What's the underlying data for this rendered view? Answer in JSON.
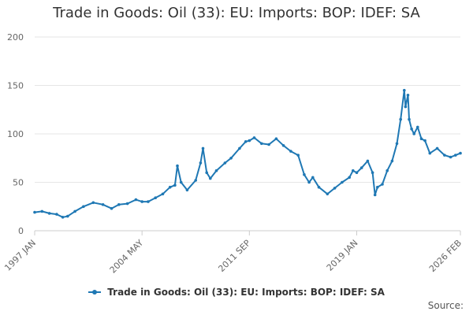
{
  "chart_data": {
    "type": "line",
    "title": "Trade in Goods: Oil (33): EU: Imports: BOP: IDEF: SA",
    "xlabel": "",
    "ylabel": "",
    "ylim": [
      0,
      200
    ],
    "y_ticks": [
      0,
      50,
      100,
      150,
      200
    ],
    "x_tick_labels": [
      "1997 JAN",
      "2004 MAY",
      "2011 SEP",
      "2019 JAN",
      "2026 FEB"
    ],
    "x_tick_dates": [
      "1997-01",
      "2004-05",
      "2011-09",
      "2019-01",
      "2026-02"
    ],
    "grid": true,
    "legend_position": "bottom",
    "series": [
      {
        "name": "Trade in Goods: Oil (33): EU: Imports: BOP: IDEF: SA",
        "color": "#1f78b4",
        "x": [
          "1997-01",
          "1997-07",
          "1998-01",
          "1998-07",
          "1998-12",
          "1999-04",
          "1999-10",
          "2000-05",
          "2001-01",
          "2001-09",
          "2002-04",
          "2002-10",
          "2003-05",
          "2003-12",
          "2004-05",
          "2004-10",
          "2005-04",
          "2005-10",
          "2006-04",
          "2006-08",
          "2006-10",
          "2007-01",
          "2007-06",
          "2008-01",
          "2008-05",
          "2008-07",
          "2008-10",
          "2009-01",
          "2009-06",
          "2010-01",
          "2010-06",
          "2011-01",
          "2011-06",
          "2011-09",
          "2012-01",
          "2012-07",
          "2013-01",
          "2013-07",
          "2014-01",
          "2014-07",
          "2015-01",
          "2015-06",
          "2015-10",
          "2016-01",
          "2016-06",
          "2017-01",
          "2017-07",
          "2018-01",
          "2018-07",
          "2018-10",
          "2019-01",
          "2019-05",
          "2019-10",
          "2020-02",
          "2020-04",
          "2020-06",
          "2020-10",
          "2021-02",
          "2021-06",
          "2021-10",
          "2022-01",
          "2022-04",
          "2022-05",
          "2022-07",
          "2022-08",
          "2022-10",
          "2022-12",
          "2023-03",
          "2023-06",
          "2023-09",
          "2024-01",
          "2024-07",
          "2025-01",
          "2025-06",
          "2025-10",
          "2026-02"
        ],
        "values": [
          19,
          20,
          18,
          17,
          14,
          15,
          20,
          25,
          29,
          27,
          23,
          27,
          28,
          32,
          30,
          30,
          34,
          38,
          45,
          47,
          67,
          50,
          42,
          52,
          70,
          85,
          60,
          54,
          62,
          70,
          75,
          85,
          92,
          93,
          96,
          90,
          89,
          95,
          88,
          82,
          78,
          58,
          50,
          55,
          45,
          38,
          44,
          50,
          55,
          62,
          60,
          65,
          72,
          60,
          37,
          45,
          48,
          62,
          72,
          90,
          115,
          145,
          128,
          140,
          115,
          105,
          100,
          107,
          95,
          93,
          80,
          85,
          78,
          76,
          78,
          80
        ]
      }
    ]
  },
  "source_label": "Source:"
}
